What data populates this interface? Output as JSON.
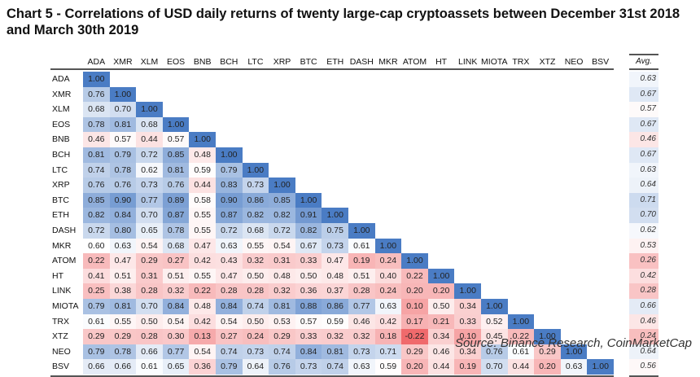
{
  "chart_data": {
    "type": "heatmap",
    "title": "Chart 5 - Correlations of USD daily returns of twenty large-cap cryptoassets between December 31st 2018 and March 30th 2019",
    "labels": [
      "ADA",
      "XMR",
      "XLM",
      "EOS",
      "BNB",
      "BCH",
      "LTC",
      "XRP",
      "BTC",
      "ETH",
      "DASH",
      "MKR",
      "ATOM",
      "HT",
      "LINK",
      "MIOTA",
      "TRX",
      "XTZ",
      "NEO",
      "BSV"
    ],
    "matrix": [
      [
        1.0
      ],
      [
        0.76,
        1.0
      ],
      [
        0.68,
        0.7,
        1.0
      ],
      [
        0.78,
        0.81,
        0.68,
        1.0
      ],
      [
        0.46,
        0.57,
        0.44,
        0.57,
        1.0
      ],
      [
        0.81,
        0.79,
        0.72,
        0.85,
        0.48,
        1.0
      ],
      [
        0.74,
        0.78,
        0.62,
        0.81,
        0.59,
        0.79,
        1.0
      ],
      [
        0.76,
        0.76,
        0.73,
        0.76,
        0.44,
        0.83,
        0.73,
        1.0
      ],
      [
        0.85,
        0.9,
        0.77,
        0.89,
        0.58,
        0.9,
        0.86,
        0.85,
        1.0
      ],
      [
        0.82,
        0.84,
        0.7,
        0.87,
        0.55,
        0.87,
        0.82,
        0.82,
        0.91,
        1.0
      ],
      [
        0.72,
        0.8,
        0.65,
        0.78,
        0.55,
        0.72,
        0.68,
        0.72,
        0.82,
        0.75,
        1.0
      ],
      [
        0.6,
        0.63,
        0.54,
        0.68,
        0.47,
        0.63,
        0.55,
        0.54,
        0.67,
        0.73,
        0.61,
        1.0
      ],
      [
        0.22,
        0.47,
        0.29,
        0.27,
        0.42,
        0.43,
        0.32,
        0.31,
        0.33,
        0.47,
        0.19,
        0.24,
        1.0
      ],
      [
        0.41,
        0.51,
        0.31,
        0.51,
        0.55,
        0.47,
        0.5,
        0.48,
        0.5,
        0.48,
        0.51,
        0.4,
        0.22,
        1.0
      ],
      [
        0.25,
        0.38,
        0.28,
        0.32,
        0.22,
        0.28,
        0.28,
        0.32,
        0.36,
        0.37,
        0.28,
        0.24,
        0.2,
        0.2,
        1.0
      ],
      [
        0.79,
        0.81,
        0.7,
        0.84,
        0.48,
        0.84,
        0.74,
        0.81,
        0.88,
        0.86,
        0.77,
        0.63,
        0.1,
        0.5,
        0.34,
        1.0
      ],
      [
        0.61,
        0.55,
        0.5,
        0.54,
        0.42,
        0.54,
        0.5,
        0.53,
        0.57,
        0.59,
        0.46,
        0.42,
        0.17,
        0.21,
        0.33,
        0.52,
        1.0
      ],
      [
        0.29,
        0.29,
        0.28,
        0.3,
        0.13,
        0.27,
        0.24,
        0.29,
        0.33,
        0.32,
        0.32,
        0.18,
        -0.22,
        0.34,
        0.1,
        0.45,
        0.22,
        1.0
      ],
      [
        0.79,
        0.78,
        0.66,
        0.77,
        0.54,
        0.74,
        0.73,
        0.74,
        0.84,
        0.81,
        0.73,
        0.71,
        0.29,
        0.46,
        0.34,
        0.76,
        0.61,
        0.29,
        1.0
      ],
      [
        0.66,
        0.66,
        0.61,
        0.65,
        0.36,
        0.79,
        0.64,
        0.76,
        0.73,
        0.74,
        0.63,
        0.59,
        0.2,
        0.44,
        0.19,
        0.7,
        0.44,
        0.2,
        0.63,
        1.0
      ]
    ],
    "avg_label": "Avg.",
    "avg": [
      0.63,
      0.67,
      0.57,
      0.67,
      0.46,
      0.67,
      0.63,
      0.64,
      0.71,
      0.7,
      0.62,
      0.53,
      0.26,
      0.42,
      0.28,
      0.66,
      0.46,
      0.24,
      0.64,
      0.56
    ],
    "colors": {
      "high": "#4a7cc4",
      "mid": "#ffffff",
      "low": "#f06a6c"
    },
    "source": "Source: Binance Research, CoinMarketCap"
  }
}
